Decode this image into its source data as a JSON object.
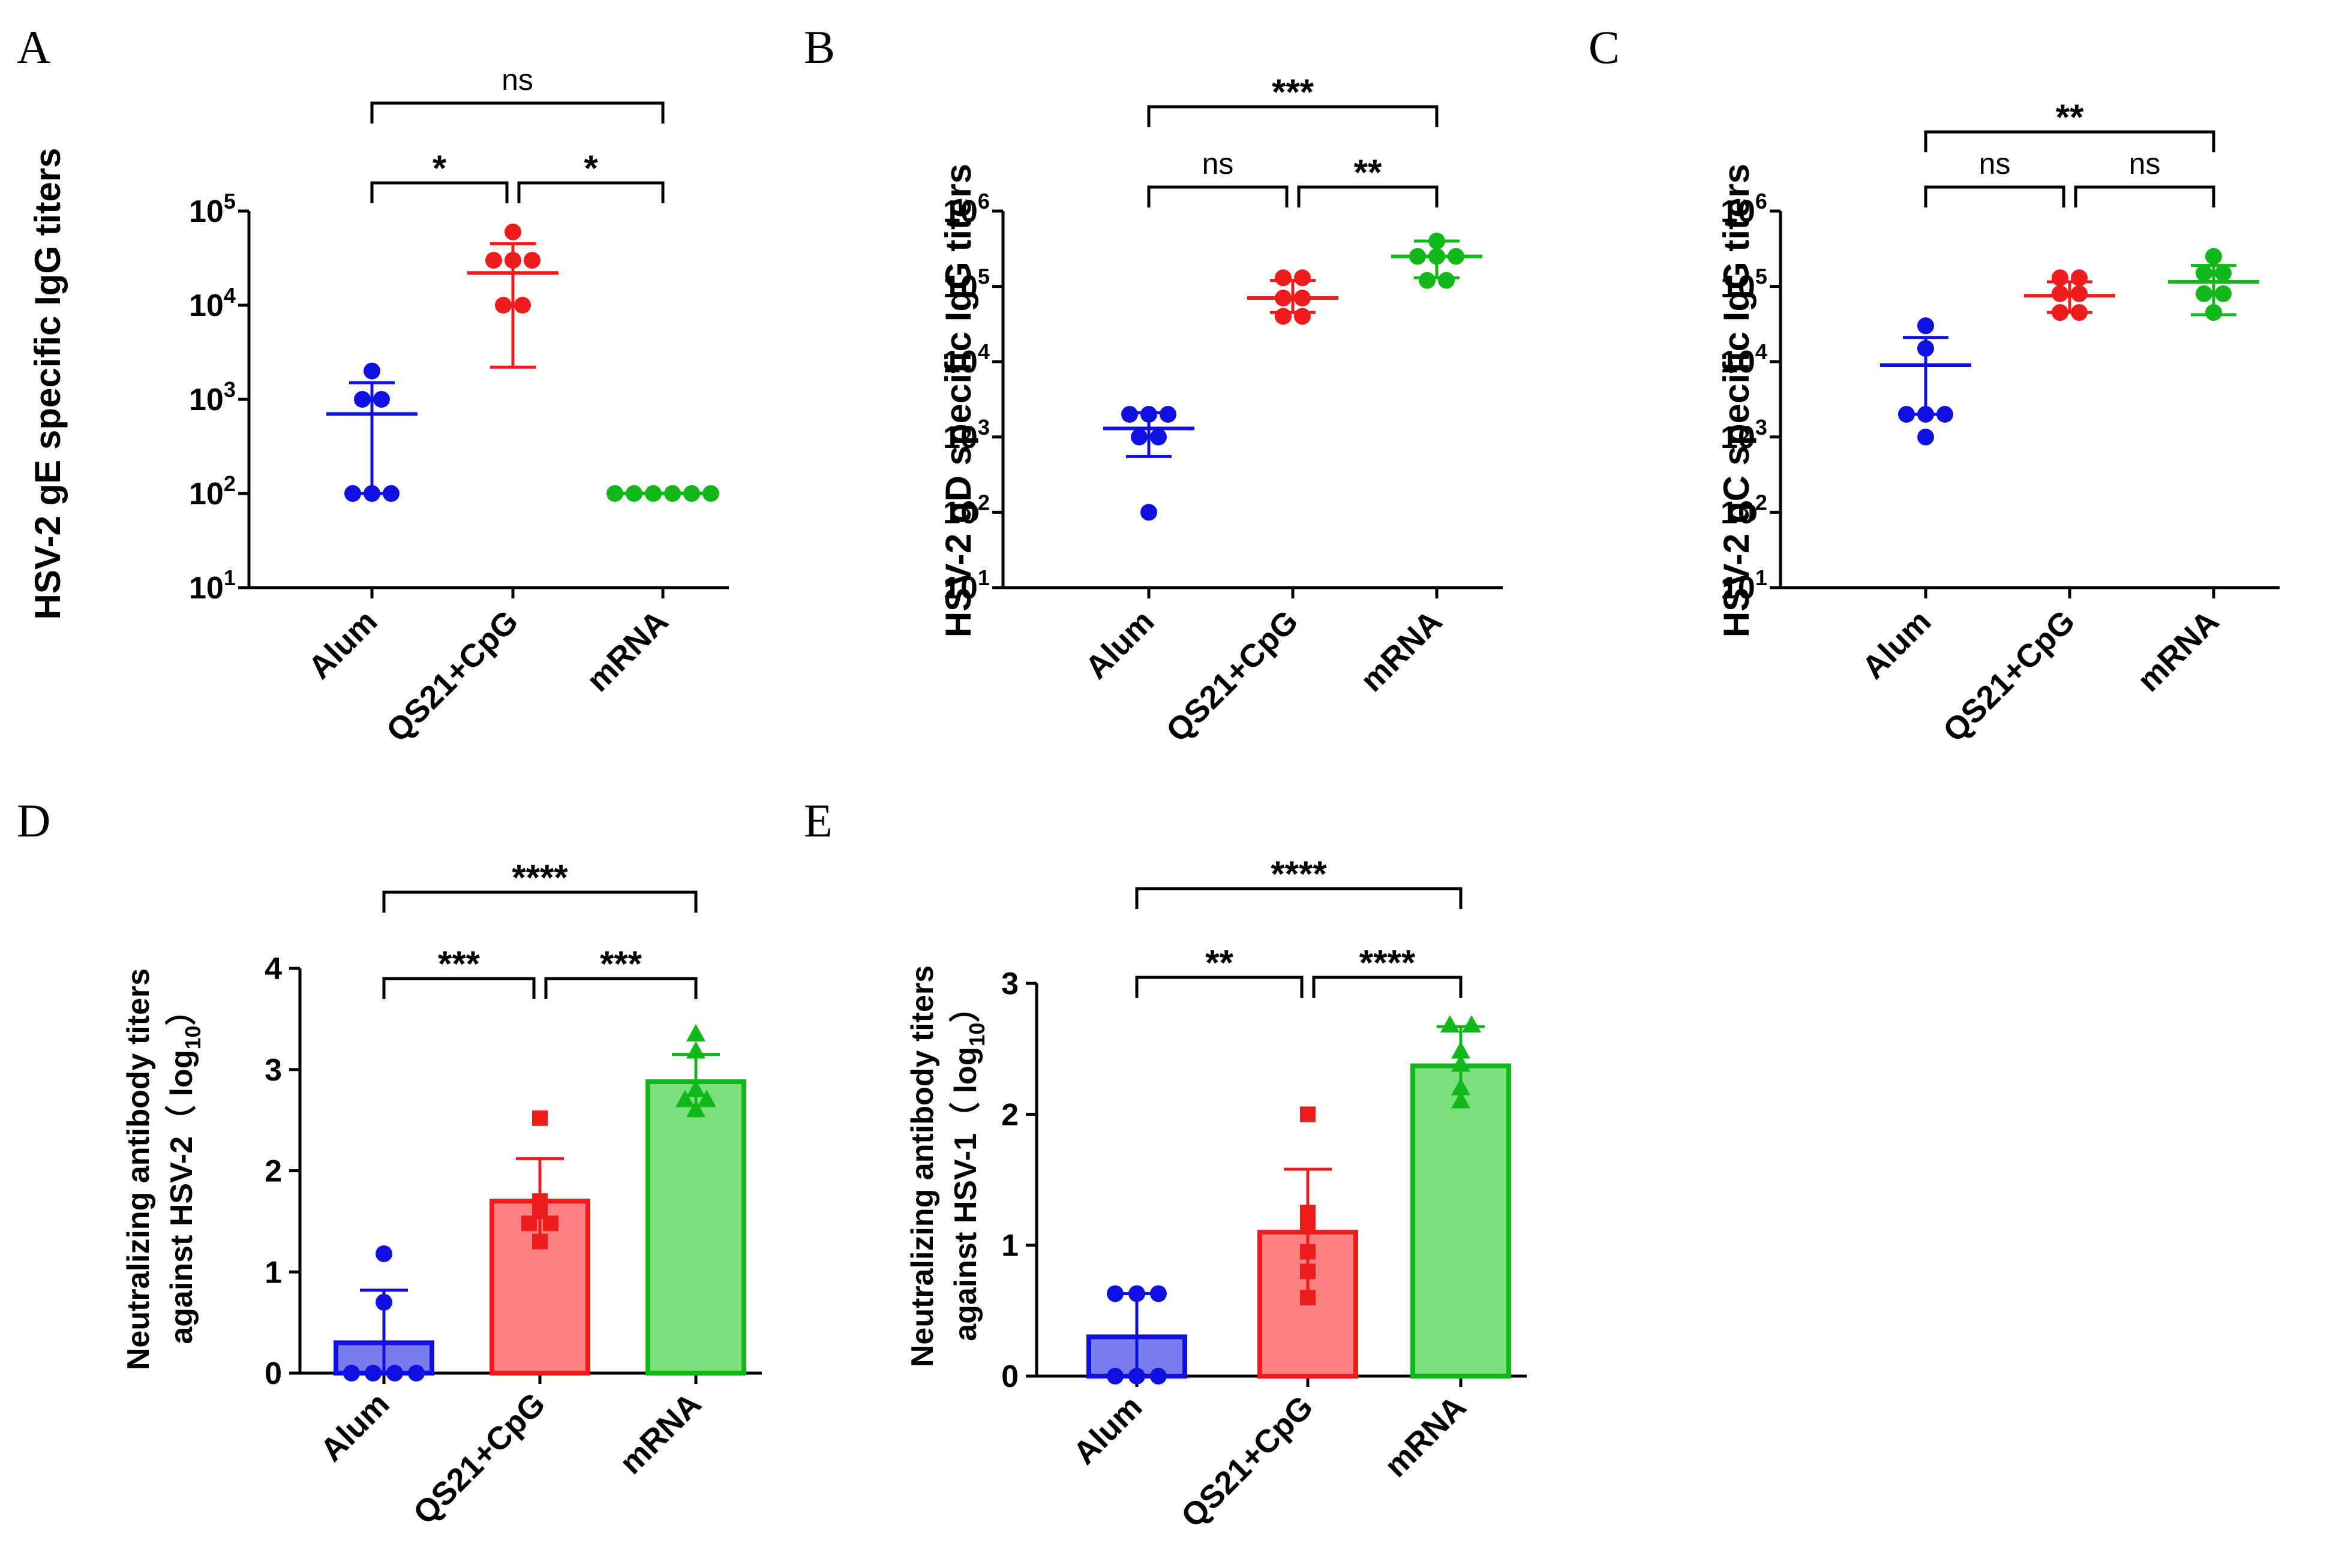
{
  "figure": {
    "colors": {
      "Alum": "#1010e0",
      "QS21+CpG": "#ee1c1c",
      "mRNA": "#12b81a",
      "Alum_fill": "#7b7bf0",
      "QS21+CpG_fill": "#ff8080",
      "mRNA_fill": "#7ce07c",
      "axis": "#000000"
    }
  },
  "chart_data": [
    {
      "id": "A",
      "panel_label": "A",
      "type": "scatter",
      "scale": "log",
      "ylabel": "HSV-2 gE specific IgG titers",
      "categories": [
        "Alum",
        "QS21+CpG",
        "mRNA"
      ],
      "ylim": [
        10,
        100000
      ],
      "yticks": [
        {
          "v": 10,
          "base": "10",
          "exp": "1"
        },
        {
          "v": 100,
          "base": "10",
          "exp": "2"
        },
        {
          "v": 1000,
          "base": "10",
          "exp": "3"
        },
        {
          "v": 10000,
          "base": "10",
          "exp": "4"
        },
        {
          "v": 100000,
          "base": "10",
          "exp": "5"
        }
      ],
      "series": [
        {
          "name": "Alum",
          "mean": 700,
          "err_low": 100,
          "err_high": 1500,
          "points": [
            2000,
            1000,
            1000,
            100,
            100,
            100
          ]
        },
        {
          "name": "QS21+CpG",
          "mean": 22000,
          "err_low": 2200,
          "err_high": 45000,
          "points": [
            60000,
            30000,
            30000,
            30000,
            10000,
            10000
          ]
        },
        {
          "name": "mRNA",
          "mean": 100,
          "err_low": 100,
          "err_high": 100,
          "points": [
            100,
            100,
            100,
            100,
            100,
            100
          ]
        }
      ],
      "comparisons": [
        {
          "from": 0,
          "to": 1,
          "label": "*",
          "level": 0
        },
        {
          "from": 1,
          "to": 2,
          "label": "*",
          "level": 0
        },
        {
          "from": 0,
          "to": 2,
          "label": "ns",
          "level": 1
        }
      ]
    },
    {
      "id": "B",
      "panel_label": "B",
      "type": "scatter",
      "scale": "log",
      "ylabel": "HSV-2 gD specific IgG titers",
      "categories": [
        "Alum",
        "QS21+CpG",
        "mRNA"
      ],
      "ylim": [
        10,
        1000000
      ],
      "yticks": [
        {
          "v": 10,
          "base": "10",
          "exp": "1"
        },
        {
          "v": 100,
          "base": "10",
          "exp": "2"
        },
        {
          "v": 1000,
          "base": "10",
          "exp": "3"
        },
        {
          "v": 10000,
          "base": "10",
          "exp": "4"
        },
        {
          "v": 100000,
          "base": "10",
          "exp": "5"
        },
        {
          "v": 1000000,
          "base": "10",
          "exp": "6"
        }
      ],
      "series": [
        {
          "name": "Alum",
          "mean": 1300,
          "err_low": 550,
          "err_high": 2100,
          "points": [
            2000,
            2000,
            2000,
            1000,
            1000,
            100
          ]
        },
        {
          "name": "QS21+CpG",
          "mean": 70000,
          "err_low": 45000,
          "err_high": 120000,
          "points": [
            130000,
            130000,
            70000,
            70000,
            40000,
            40000
          ]
        },
        {
          "name": "mRNA",
          "mean": 250000,
          "err_low": 130000,
          "err_high": 400000,
          "points": [
            400000,
            250000,
            250000,
            250000,
            120000,
            120000
          ]
        }
      ],
      "comparisons": [
        {
          "from": 0,
          "to": 1,
          "label": "ns",
          "level": 0
        },
        {
          "from": 1,
          "to": 2,
          "label": "**",
          "level": 0
        },
        {
          "from": 0,
          "to": 2,
          "label": "***",
          "level": 1
        }
      ]
    },
    {
      "id": "C",
      "panel_label": "C",
      "type": "scatter",
      "scale": "log",
      "ylabel": "HSV-2 gC specific IgG titers",
      "categories": [
        "Alum",
        "QS21+CpG",
        "mRNA"
      ],
      "ylim": [
        10,
        1000000
      ],
      "yticks": [
        {
          "v": 10,
          "base": "10",
          "exp": "1"
        },
        {
          "v": 100,
          "base": "10",
          "exp": "2"
        },
        {
          "v": 1000,
          "base": "10",
          "exp": "3"
        },
        {
          "v": 10000,
          "base": "10",
          "exp": "4"
        },
        {
          "v": 100000,
          "base": "10",
          "exp": "5"
        },
        {
          "v": 1000000,
          "base": "10",
          "exp": "6"
        }
      ],
      "series": [
        {
          "name": "Alum",
          "mean": 9000,
          "err_low": 2000,
          "err_high": 21000,
          "points": [
            30000,
            15000,
            2000,
            2000,
            2000,
            1000
          ]
        },
        {
          "name": "QS21+CpG",
          "mean": 75000,
          "err_low": 45000,
          "err_high": 115000,
          "points": [
            130000,
            130000,
            80000,
            80000,
            45000,
            45000
          ]
        },
        {
          "name": "mRNA",
          "mean": 115000,
          "err_low": 42000,
          "err_high": 190000,
          "points": [
            250000,
            150000,
            150000,
            80000,
            80000,
            45000
          ]
        }
      ],
      "comparisons": [
        {
          "from": 0,
          "to": 1,
          "label": "ns",
          "level": 0
        },
        {
          "from": 1,
          "to": 2,
          "label": "ns",
          "level": 0
        },
        {
          "from": 0,
          "to": 2,
          "label": "**",
          "level": 1
        }
      ]
    },
    {
      "id": "D",
      "panel_label": "D",
      "type": "bar",
      "scale": "linear",
      "ylabel_line1": "Neutralizing antibody titers",
      "ylabel_line2": "against HSV-2（ log",
      "ylabel_sub": "10",
      "ylabel_close": "）",
      "categories": [
        "Alum",
        "QS21+CpG",
        "mRNA"
      ],
      "ylim": [
        0,
        4
      ],
      "yticks": [
        {
          "v": 0,
          "label": "0"
        },
        {
          "v": 1,
          "label": "1"
        },
        {
          "v": 2,
          "label": "2"
        },
        {
          "v": 3,
          "label": "3"
        },
        {
          "v": 4,
          "label": "4"
        }
      ],
      "marker": [
        "circle",
        "square",
        "triangle"
      ],
      "series": [
        {
          "name": "Alum",
          "mean": 0.3,
          "err_low": 0,
          "err_high": 0.82,
          "points": [
            1.18,
            0.7,
            0,
            0,
            0,
            0
          ]
        },
        {
          "name": "QS21+CpG",
          "mean": 1.7,
          "err_low": 1.25,
          "err_high": 2.12,
          "points": [
            2.52,
            1.7,
            1.6,
            1.48,
            1.48,
            1.3
          ]
        },
        {
          "name": "mRNA",
          "mean": 2.88,
          "err_low": 2.58,
          "err_high": 3.15,
          "points": [
            3.35,
            3.18,
            2.8,
            2.7,
            2.7,
            2.6
          ]
        }
      ],
      "comparisons": [
        {
          "from": 0,
          "to": 1,
          "label": "***",
          "level": 0
        },
        {
          "from": 1,
          "to": 2,
          "label": "***",
          "level": 0
        },
        {
          "from": 0,
          "to": 2,
          "label": "****",
          "level": 1
        }
      ]
    },
    {
      "id": "E",
      "panel_label": "E",
      "type": "bar",
      "scale": "linear",
      "ylabel_line1": "Neutralizing antibody titers",
      "ylabel_line2": "against HSV-1（ log",
      "ylabel_sub": "10",
      "ylabel_close": "）",
      "categories": [
        "Alum",
        "QS21+CpG",
        "mRNA"
      ],
      "ylim": [
        0,
        3
      ],
      "yticks": [
        {
          "v": 0,
          "label": "0"
        },
        {
          "v": 1,
          "label": "1"
        },
        {
          "v": 2,
          "label": "2"
        },
        {
          "v": 3,
          "label": "3"
        }
      ],
      "marker": [
        "circle",
        "square",
        "triangle"
      ],
      "series": [
        {
          "name": "Alum",
          "mean": 0.3,
          "err_low": 0,
          "err_high": 0.63,
          "points": [
            0.63,
            0.63,
            0.63,
            0,
            0,
            0
          ]
        },
        {
          "name": "QS21+CpG",
          "mean": 1.1,
          "err_low": 0.62,
          "err_high": 1.58,
          "points": [
            2.0,
            1.25,
            1.15,
            0.95,
            0.8,
            0.6
          ]
        },
        {
          "name": "mRNA",
          "mean": 2.37,
          "err_low": 2.07,
          "err_high": 2.67,
          "points": [
            2.68,
            2.68,
            2.48,
            2.38,
            2.2,
            2.1
          ]
        }
      ],
      "comparisons": [
        {
          "from": 0,
          "to": 1,
          "label": "**",
          "level": 0
        },
        {
          "from": 1,
          "to": 2,
          "label": "****",
          "level": 0
        },
        {
          "from": 0,
          "to": 2,
          "label": "****",
          "level": 1
        }
      ]
    }
  ]
}
